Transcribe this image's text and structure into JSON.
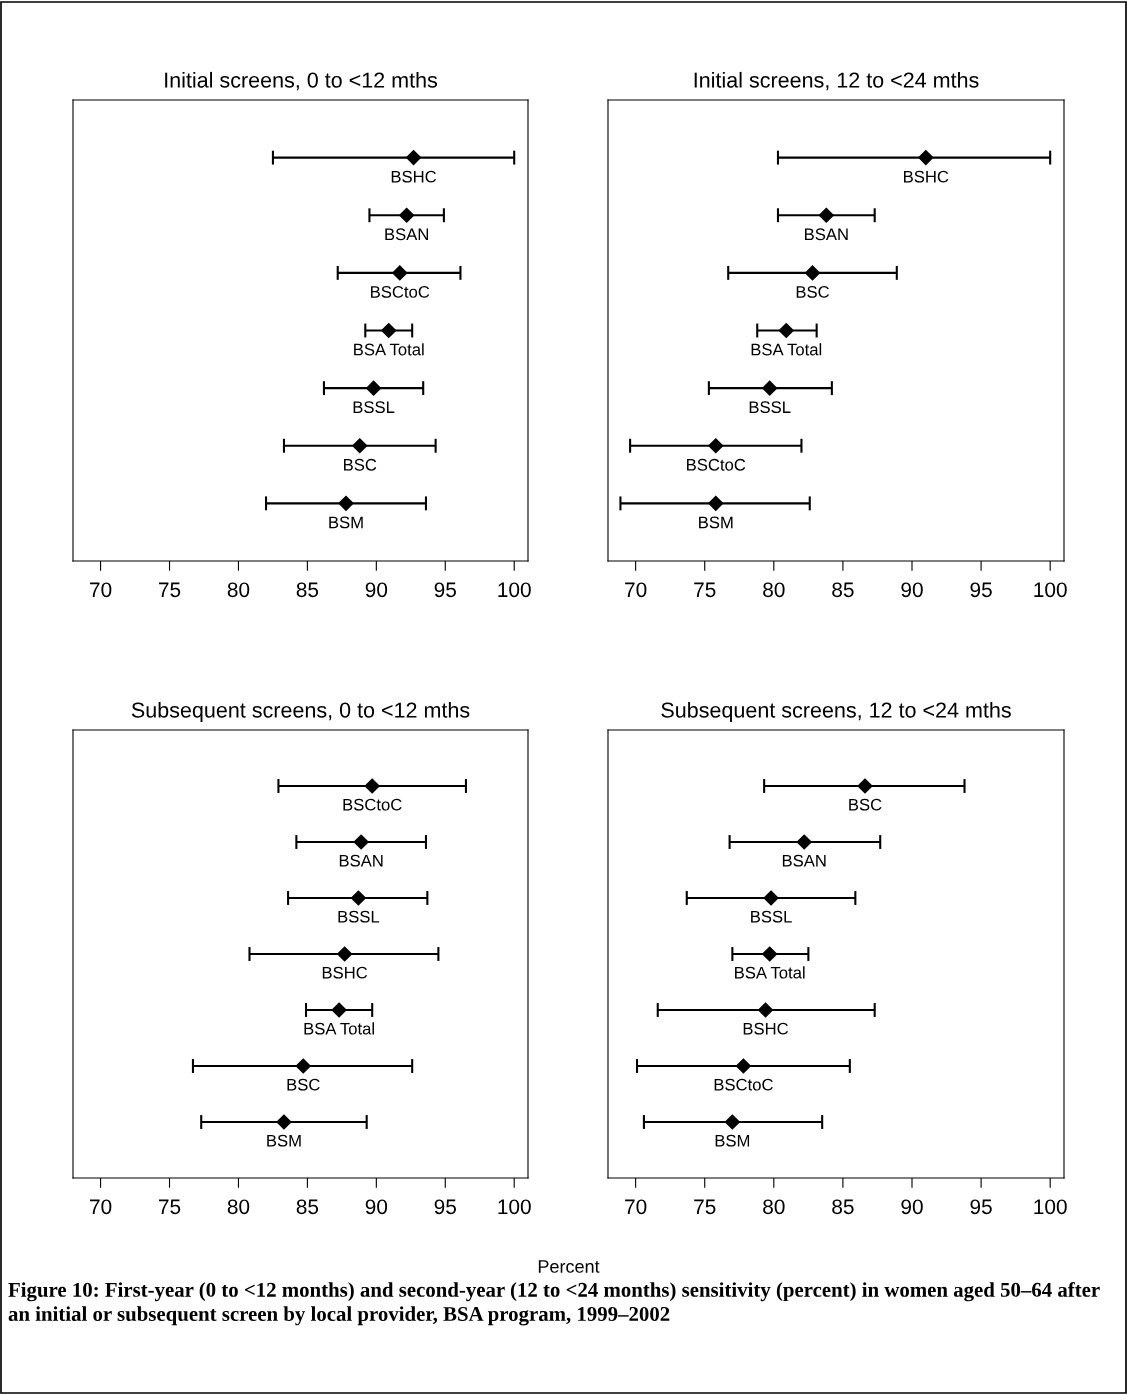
{
  "chart_data": [
    {
      "type": "scatter",
      "orientation": "horizontal",
      "title": "Initial screens, 0 to <12 mths",
      "categories": [
        "BSHC",
        "BSAN",
        "BSCtoC",
        "BSA Total",
        "BSSL",
        "BSC",
        "BSM"
      ],
      "values": [
        92.7,
        92.2,
        91.7,
        90.9,
        89.8,
        88.8,
        87.8
      ],
      "errors": [
        [
          82.5,
          100.0
        ],
        [
          89.5,
          94.9
        ],
        [
          87.2,
          96.1
        ],
        [
          89.2,
          92.6
        ],
        [
          86.2,
          93.4
        ],
        [
          83.3,
          94.3
        ],
        [
          82.0,
          93.6
        ]
      ],
      "color": "#000000",
      "marker": "diamond",
      "grid": false,
      "legend": false,
      "tick_labels": "x",
      "xlim": [
        68,
        101
      ],
      "xticks": [
        70,
        75,
        80,
        85,
        90,
        95,
        100
      ]
    },
    {
      "type": "scatter",
      "orientation": "horizontal",
      "title": "Initial screens, 12 to <24 mths",
      "categories": [
        "BSHC",
        "BSAN",
        "BSC",
        "BSA Total",
        "BSSL",
        "BSCtoC",
        "BSM"
      ],
      "values": [
        91.0,
        83.8,
        82.8,
        80.9,
        79.7,
        75.8,
        75.8
      ],
      "errors": [
        [
          80.3,
          100.0
        ],
        [
          80.3,
          87.3
        ],
        [
          76.7,
          88.9
        ],
        [
          78.8,
          83.1
        ],
        [
          75.3,
          84.2
        ],
        [
          69.6,
          82.0
        ],
        [
          68.9,
          82.6
        ]
      ],
      "color": "#000000",
      "marker": "diamond",
      "grid": false,
      "legend": false,
      "tick_labels": "x",
      "xlim": [
        68,
        101
      ],
      "xticks": [
        70,
        75,
        80,
        85,
        90,
        95,
        100
      ]
    },
    {
      "type": "scatter",
      "orientation": "horizontal",
      "title": "Subsequent screens, 0 to <12 mths",
      "categories": [
        "BSCtoC",
        "BSAN",
        "BSSL",
        "BSHC",
        "BSA Total",
        "BSC",
        "BSM"
      ],
      "values": [
        89.7,
        88.9,
        88.7,
        87.7,
        87.3,
        84.7,
        83.3
      ],
      "errors": [
        [
          82.9,
          96.5
        ],
        [
          84.2,
          93.6
        ],
        [
          83.6,
          93.7
        ],
        [
          80.8,
          94.5
        ],
        [
          84.9,
          89.7
        ],
        [
          76.7,
          92.6
        ],
        [
          77.3,
          89.3
        ]
      ],
      "color": "#000000",
      "marker": "diamond",
      "grid": false,
      "legend": false,
      "tick_labels": "x",
      "xlim": [
        68,
        101
      ],
      "xticks": [
        70,
        75,
        80,
        85,
        90,
        95,
        100
      ],
      "xlabel": "Percent"
    },
    {
      "type": "scatter",
      "orientation": "horizontal",
      "title": "Subsequent screens, 12 to <24 mths",
      "categories": [
        "BSC",
        "BSAN",
        "BSSL",
        "BSA Total",
        "BSHC",
        "BSCtoC",
        "BSM"
      ],
      "values": [
        86.6,
        82.2,
        79.8,
        79.7,
        79.4,
        77.8,
        77.0
      ],
      "errors": [
        [
          79.3,
          93.8
        ],
        [
          76.8,
          87.7
        ],
        [
          73.7,
          85.9
        ],
        [
          77.0,
          82.5
        ],
        [
          71.6,
          87.3
        ],
        [
          70.1,
          85.5
        ],
        [
          70.6,
          83.5
        ]
      ],
      "color": "#000000",
      "marker": "diamond",
      "grid": false,
      "legend": false,
      "tick_labels": "x",
      "xlim": [
        68,
        101
      ],
      "xticks": [
        70,
        75,
        80,
        85,
        90,
        95,
        100
      ],
      "annotations": [
        "Figure 10: First-year (0 to <12 months) and second-year (12 to <24 months) sensitivity (percent) in women aged 50–64 after an initial or subsequent screen by local provider, BSA program, 1999–2002"
      ]
    }
  ]
}
